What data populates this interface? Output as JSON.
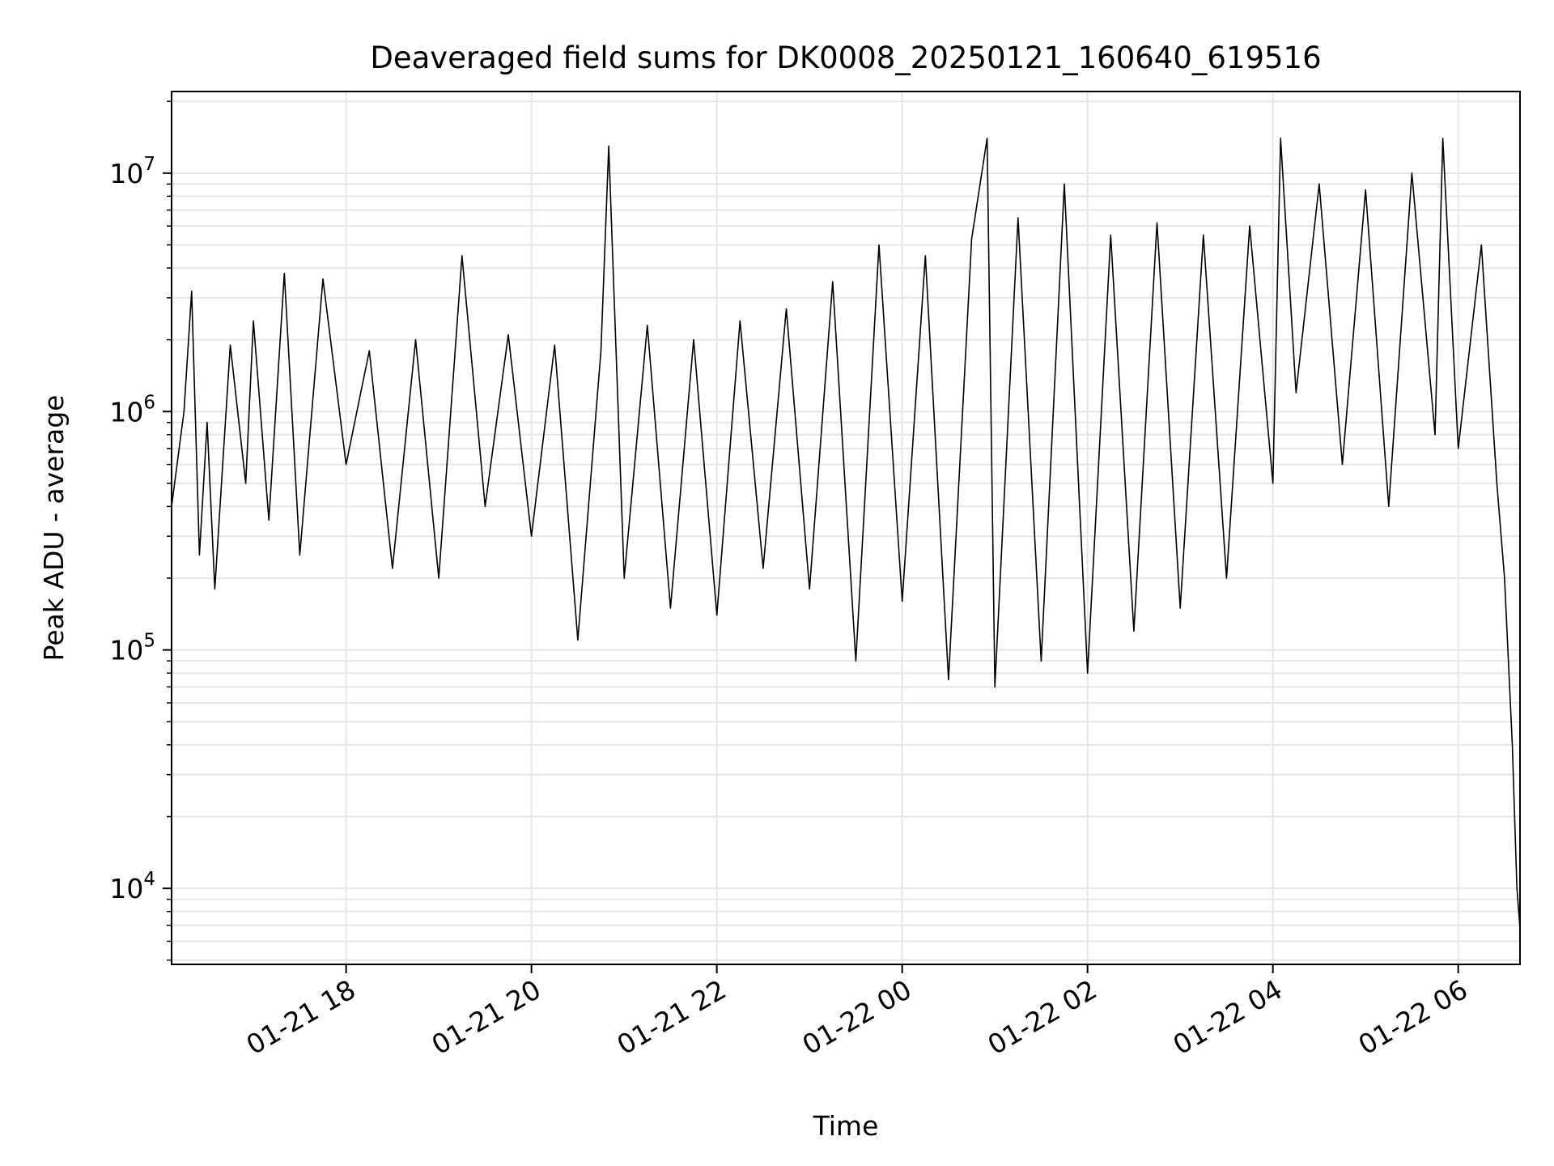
{
  "chart_data": {
    "type": "line",
    "title": "Deaveraged field sums for DK0008_20250121_160640_619516",
    "xlabel": "Time",
    "ylabel": "Peak ADU - average",
    "yscale": "log",
    "ylim": [
      4800,
      22000000
    ],
    "xlim": [
      "2025-01-21 16:07",
      "2025-01-22 06:40"
    ],
    "grid": true,
    "line_color": "#000000",
    "grid_color": "#e6e6e6",
    "x_ticks": [
      {
        "value": "2025-01-21 18:00",
        "label": "01-21 18"
      },
      {
        "value": "2025-01-21 20:00",
        "label": "01-21 20"
      },
      {
        "value": "2025-01-21 22:00",
        "label": "01-21 22"
      },
      {
        "value": "2025-01-22 00:00",
        "label": "01-22 00"
      },
      {
        "value": "2025-01-22 02:00",
        "label": "01-22 02"
      },
      {
        "value": "2025-01-22 04:00",
        "label": "01-22 04"
      },
      {
        "value": "2025-01-22 06:00",
        "label": "01-22 06"
      }
    ],
    "y_ticks": [
      {
        "value": 10000,
        "base": "10",
        "exp": "4"
      },
      {
        "value": 100000,
        "base": "10",
        "exp": "5"
      },
      {
        "value": 1000000,
        "base": "10",
        "exp": "6"
      },
      {
        "value": 10000000,
        "base": "10",
        "exp": "7"
      }
    ],
    "series": [
      {
        "values": [
          [
            "2025-01-21 16:07",
            400000
          ],
          [
            "2025-01-21 16:15",
            1000000
          ],
          [
            "2025-01-21 16:20",
            3200000
          ],
          [
            "2025-01-21 16:25",
            250000
          ],
          [
            "2025-01-21 16:30",
            900000
          ],
          [
            "2025-01-21 16:35",
            180000
          ],
          [
            "2025-01-21 16:45",
            1900000
          ],
          [
            "2025-01-21 16:55",
            500000
          ],
          [
            "2025-01-21 17:00",
            2400000
          ],
          [
            "2025-01-21 17:10",
            350000
          ],
          [
            "2025-01-21 17:20",
            3800000
          ],
          [
            "2025-01-21 17:30",
            250000
          ],
          [
            "2025-01-21 17:45",
            3600000
          ],
          [
            "2025-01-21 18:00",
            600000
          ],
          [
            "2025-01-21 18:15",
            1800000
          ],
          [
            "2025-01-21 18:30",
            220000
          ],
          [
            "2025-01-21 18:45",
            2000000
          ],
          [
            "2025-01-21 19:00",
            200000
          ],
          [
            "2025-01-21 19:15",
            4500000
          ],
          [
            "2025-01-21 19:30",
            400000
          ],
          [
            "2025-01-21 19:45",
            2100000
          ],
          [
            "2025-01-21 20:00",
            300000
          ],
          [
            "2025-01-21 20:15",
            1900000
          ],
          [
            "2025-01-21 20:30",
            110000
          ],
          [
            "2025-01-21 20:45",
            1800000
          ],
          [
            "2025-01-21 20:50",
            13000000
          ],
          [
            "2025-01-21 21:00",
            200000
          ],
          [
            "2025-01-21 21:15",
            2300000
          ],
          [
            "2025-01-21 21:30",
            150000
          ],
          [
            "2025-01-21 21:45",
            2000000
          ],
          [
            "2025-01-21 22:00",
            140000
          ],
          [
            "2025-01-21 22:15",
            2400000
          ],
          [
            "2025-01-21 22:30",
            220000
          ],
          [
            "2025-01-21 22:45",
            2700000
          ],
          [
            "2025-01-21 23:00",
            180000
          ],
          [
            "2025-01-21 23:15",
            3500000
          ],
          [
            "2025-01-21 23:30",
            90000
          ],
          [
            "2025-01-21 23:45",
            5000000
          ],
          [
            "2025-01-22 00:00",
            160000
          ],
          [
            "2025-01-22 00:15",
            4500000
          ],
          [
            "2025-01-22 00:30",
            75000
          ],
          [
            "2025-01-22 00:45",
            5300000
          ],
          [
            "2025-01-22 00:55",
            14000000
          ],
          [
            "2025-01-22 01:00",
            70000
          ],
          [
            "2025-01-22 01:15",
            6500000
          ],
          [
            "2025-01-22 01:30",
            90000
          ],
          [
            "2025-01-22 01:45",
            9000000
          ],
          [
            "2025-01-22 02:00",
            80000
          ],
          [
            "2025-01-22 02:15",
            5500000
          ],
          [
            "2025-01-22 02:30",
            120000
          ],
          [
            "2025-01-22 02:45",
            6200000
          ],
          [
            "2025-01-22 03:00",
            150000
          ],
          [
            "2025-01-22 03:15",
            5500000
          ],
          [
            "2025-01-22 03:30",
            200000
          ],
          [
            "2025-01-22 03:45",
            6000000
          ],
          [
            "2025-01-22 04:00",
            500000
          ],
          [
            "2025-01-22 04:05",
            14000000
          ],
          [
            "2025-01-22 04:15",
            1200000
          ],
          [
            "2025-01-22 04:30",
            9000000
          ],
          [
            "2025-01-22 04:45",
            600000
          ],
          [
            "2025-01-22 05:00",
            8500000
          ],
          [
            "2025-01-22 05:15",
            400000
          ],
          [
            "2025-01-22 05:30",
            10000000
          ],
          [
            "2025-01-22 05:45",
            800000
          ],
          [
            "2025-01-22 05:50",
            14000000
          ],
          [
            "2025-01-22 06:00",
            700000
          ],
          [
            "2025-01-22 06:15",
            5000000
          ],
          [
            "2025-01-22 06:25",
            500000
          ],
          [
            "2025-01-22 06:30",
            200000
          ],
          [
            "2025-01-22 06:35",
            40000
          ],
          [
            "2025-01-22 06:38",
            10000
          ],
          [
            "2025-01-22 06:40",
            6800
          ]
        ]
      }
    ]
  }
}
